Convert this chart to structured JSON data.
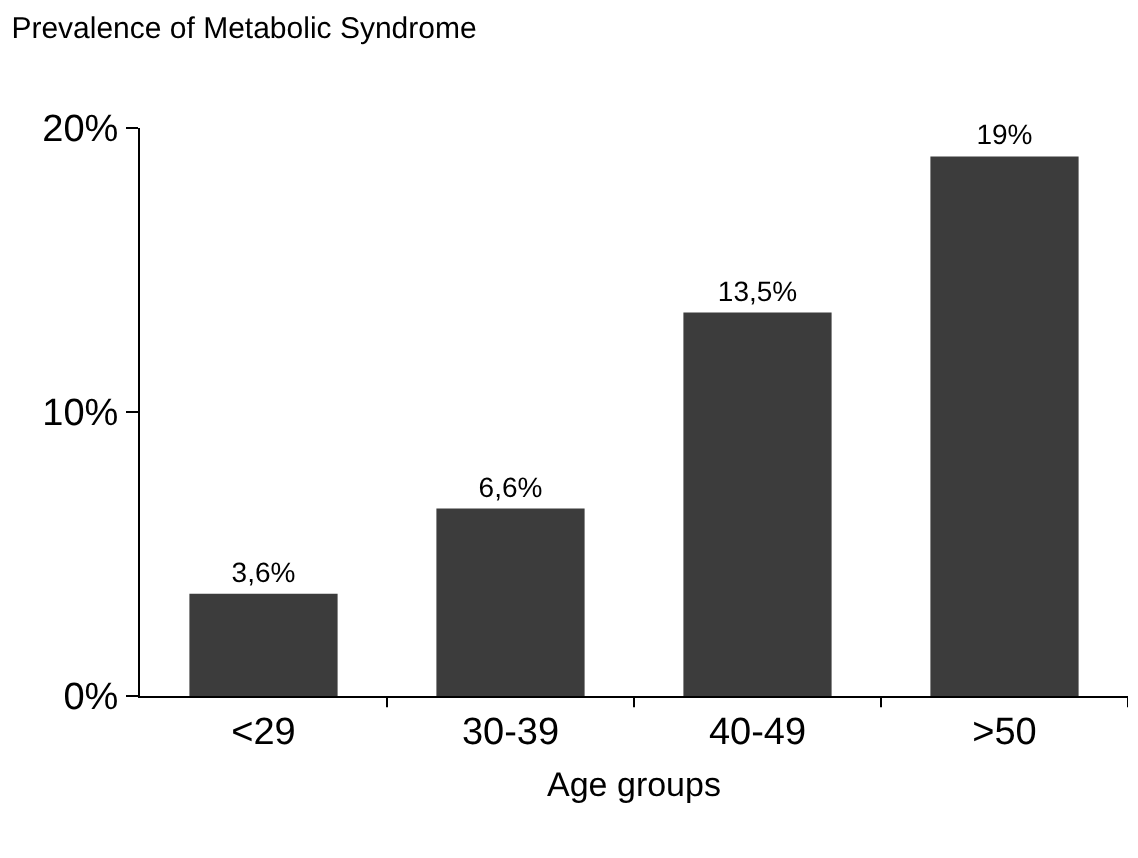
{
  "chart_data": {
    "type": "bar",
    "title": "Prevalence of Metabolic Syndrome",
    "xlabel": "Age groups",
    "categories": [
      "<29",
      "30-39",
      "40-49",
      ">50"
    ],
    "values": [
      3.6,
      6.6,
      13.5,
      19
    ],
    "value_labels": [
      "3,6%",
      "6,6%",
      "13,5%",
      "19%"
    ],
    "color": "#3c3c3c",
    "ylim": [
      0,
      20
    ],
    "yticks": [
      {
        "value": 0,
        "label": "0%"
      },
      {
        "value": 10,
        "label": "10%"
      },
      {
        "value": 20,
        "label": "20%"
      }
    ],
    "grid": false,
    "legend": false
  }
}
